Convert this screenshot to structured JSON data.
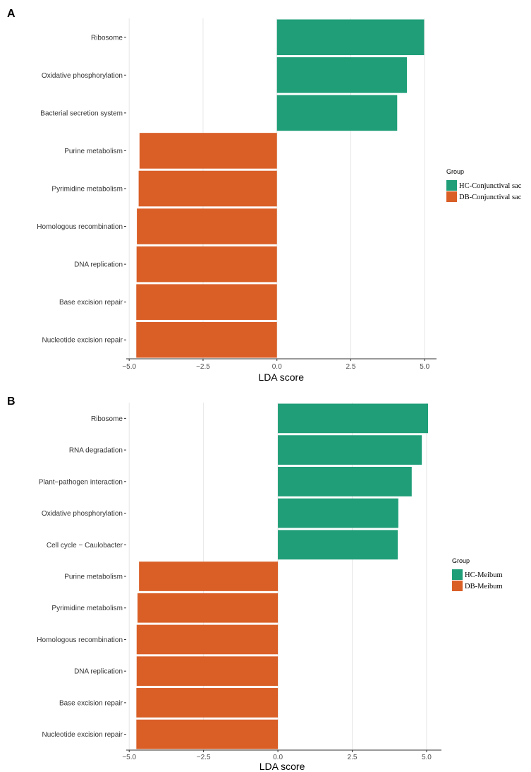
{
  "colors": {
    "hc": "#1f9e78",
    "db": "#d95f27",
    "grid": "#e6e6e6",
    "axis": "#333333"
  },
  "chart_data": [
    {
      "panel": "A",
      "type": "bar",
      "orientation": "horizontal",
      "categories": [
        "Ribosome",
        "Oxidative phosphorylation",
        "Bacterial secretion system",
        "Purine metabolism",
        "Pyrimidine metabolism",
        "Homologous recombination",
        "DNA replication",
        "Base excision repair",
        "Nucleotide excision repair"
      ],
      "values": [
        4.98,
        4.4,
        4.07,
        -4.65,
        -4.68,
        -4.74,
        -4.75,
        -4.76,
        -4.76
      ],
      "groups": [
        "HC-Conjunctival sac",
        "HC-Conjunctival sac",
        "HC-Conjunctival sac",
        "DB-Conjunctival sac",
        "DB-Conjunctival sac",
        "DB-Conjunctival sac",
        "DB-Conjunctival sac",
        "DB-Conjunctival sac",
        "DB-Conjunctival sac"
      ],
      "xlabel": "LDA score",
      "xlim": [
        -5.1,
        5.4
      ],
      "ticks": [
        -5.0,
        -2.5,
        0.0,
        2.5,
        5.0
      ],
      "tick_labels": [
        "−5.0",
        "−2.5",
        "0.0",
        "2.5",
        "5.0"
      ],
      "grid": true,
      "legend": {
        "title": "Group",
        "position": "right",
        "entries": [
          {
            "label": "HC-Conjunctival sac",
            "color": "#1f9e78"
          },
          {
            "label": "DB-Conjunctival sac",
            "color": "#d95f27"
          }
        ]
      }
    },
    {
      "panel": "B",
      "type": "bar",
      "orientation": "horizontal",
      "categories": [
        "Ribosome",
        "RNA degradation",
        "Plant−pathogen interaction",
        "Oxidative phosphorylation",
        "Cell cycle − Caulobacter",
        "Purine metabolism",
        "Pyrimidine metabolism",
        "Homologous recombination",
        "DNA replication",
        "Base excision repair",
        "Nucleotide excision repair"
      ],
      "values": [
        5.05,
        4.84,
        4.5,
        4.05,
        4.03,
        -4.67,
        -4.72,
        -4.75,
        -4.75,
        -4.76,
        -4.76
      ],
      "groups": [
        "HC-Meibum",
        "HC-Meibum",
        "HC-Meibum",
        "HC-Meibum",
        "HC-Meibum",
        "DB-Meibum",
        "DB-Meibum",
        "DB-Meibum",
        "DB-Meibum",
        "DB-Meibum",
        "DB-Meibum"
      ],
      "xlabel": "LDA score",
      "xlim": [
        -5.1,
        5.5
      ],
      "ticks": [
        -5.0,
        -2.5,
        0.0,
        2.5,
        5.0
      ],
      "tick_labels": [
        "−5.0",
        "−2.5",
        "0.0",
        "2.5",
        "5.0"
      ],
      "grid": true,
      "legend": {
        "title": "Group",
        "position": "right",
        "entries": [
          {
            "label": "HC-Meibum",
            "color": "#1f9e78"
          },
          {
            "label": "DB-Meibum",
            "color": "#d95f27"
          }
        ]
      }
    }
  ]
}
